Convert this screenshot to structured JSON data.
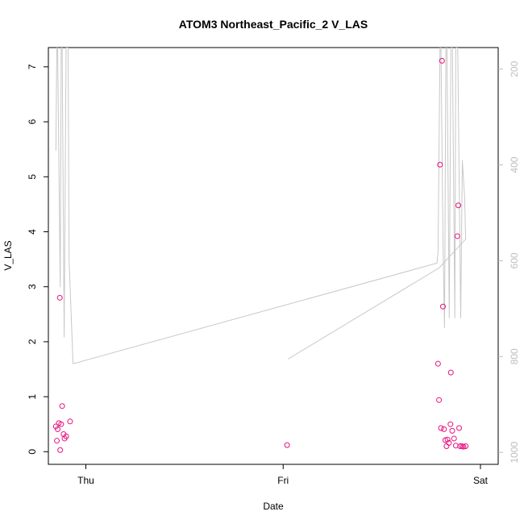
{
  "chart_data": {
    "type": "scatter",
    "title": "ATOM3 Northeast_Pacific_2 V_LAS",
    "xlabel": "Date",
    "ylabel": "V_LAS",
    "x_ticks": [
      {
        "label": "Thu",
        "value": 1.0
      },
      {
        "label": "Fri",
        "value": 2.0
      },
      {
        "label": "Sat",
        "value": 3.0
      }
    ],
    "xlim": [
      0.81,
      3.09
    ],
    "ylim": [
      -0.23,
      7.35
    ],
    "y_ticks": [
      0,
      1,
      2,
      3,
      4,
      5,
      6,
      7
    ],
    "secondary_axis": {
      "side": "right",
      "color": "#bdbdbd",
      "ticks": [
        200,
        400,
        600,
        800,
        1000
      ],
      "lim": [
        1025,
        155
      ],
      "reversed": true
    },
    "series": [
      {
        "kind": "points",
        "color": "#e8117f",
        "points": [
          [
            0.848,
            0.46
          ],
          [
            0.853,
            0.2
          ],
          [
            0.857,
            0.41
          ],
          [
            0.863,
            0.52
          ],
          [
            0.868,
            2.8
          ],
          [
            0.87,
            0.03
          ],
          [
            0.875,
            0.5
          ],
          [
            0.88,
            0.83
          ],
          [
            0.887,
            0.32
          ],
          [
            0.892,
            0.24
          ],
          [
            0.9,
            0.28
          ],
          [
            0.92,
            0.55
          ],
          [
            2.02,
            0.12
          ],
          [
            2.785,
            1.6
          ],
          [
            2.79,
            0.94
          ],
          [
            2.795,
            5.22
          ],
          [
            2.8,
            0.43
          ],
          [
            2.805,
            7.11
          ],
          [
            2.81,
            2.64
          ],
          [
            2.815,
            0.41
          ],
          [
            2.822,
            0.21
          ],
          [
            2.828,
            0.1
          ],
          [
            2.833,
            0.22
          ],
          [
            2.84,
            0.16
          ],
          [
            2.848,
            0.5
          ],
          [
            2.85,
            1.44
          ],
          [
            2.857,
            0.38
          ],
          [
            2.866,
            0.24
          ],
          [
            2.875,
            0.11
          ],
          [
            2.883,
            3.92
          ],
          [
            2.888,
            4.48
          ],
          [
            2.892,
            0.43
          ],
          [
            2.897,
            0.1
          ],
          [
            2.907,
            0.1
          ],
          [
            2.914,
            0.09
          ],
          [
            2.925,
            0.1
          ]
        ]
      },
      {
        "kind": "line",
        "color": "#c8c8c8",
        "axis": "right",
        "points": [
          [
            0.848,
            370
          ],
          [
            0.853,
            155
          ],
          [
            0.857,
            155
          ],
          [
            0.87,
            655
          ],
          [
            0.875,
            155
          ],
          [
            0.88,
            155
          ],
          [
            0.89,
            760
          ],
          [
            0.9,
            155
          ],
          [
            0.91,
            155
          ],
          [
            0.915,
            600
          ],
          [
            0.935,
            815
          ],
          [
            2.78,
            605
          ],
          [
            2.785,
            580
          ],
          [
            2.795,
            155
          ],
          [
            2.8,
            155
          ],
          [
            2.81,
            560
          ],
          [
            2.818,
            740
          ],
          [
            2.825,
            155
          ],
          [
            2.83,
            155
          ],
          [
            2.842,
            720
          ],
          [
            2.85,
            155
          ],
          [
            2.858,
            155
          ],
          [
            2.87,
            720
          ],
          [
            2.875,
            155
          ],
          [
            2.885,
            155
          ],
          [
            2.9,
            720
          ],
          [
            2.908,
            390
          ],
          [
            2.92,
            470
          ],
          [
            2.925,
            555
          ],
          [
            2.79,
            615
          ],
          [
            2.025,
            805
          ]
        ]
      }
    ]
  }
}
